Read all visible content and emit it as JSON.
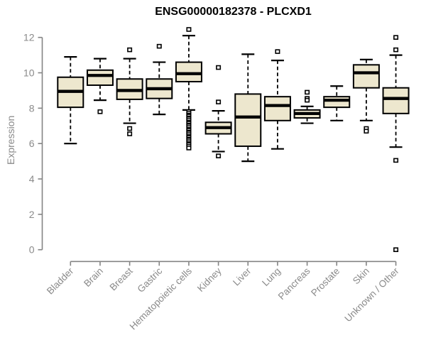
{
  "title": "ENSG00000182378 - PLCXD1",
  "colors": {
    "box_fill": "#EDE7CE",
    "box_stroke": "#000000",
    "median": "#000000",
    "whisker": "#000000",
    "outlier_fill": "#FFFFFF",
    "axis": "#848484",
    "tick_label": "#8a8a8a",
    "title_color": "#000000"
  },
  "chart_data": {
    "type": "boxplot",
    "title": "ENSG00000182378 - PLCXD1",
    "xlabel": "",
    "ylabel": "Expression",
    "ylim": [
      0,
      12
    ],
    "yticks": [
      0,
      2,
      4,
      6,
      8,
      10,
      12
    ],
    "grid": false,
    "legend": "none",
    "categories": [
      "Bladder",
      "Brain",
      "Breast",
      "Gastric",
      "Hematopoietic cells",
      "Kidney",
      "Liver",
      "Lung",
      "Pancreas",
      "Prostate",
      "Skin",
      "Unknown / Other"
    ],
    "series": [
      {
        "category": "Bladder",
        "whisker_low": 6.0,
        "q1": 8.05,
        "median": 8.95,
        "q3": 9.75,
        "whisker_high": 10.9,
        "outliers": []
      },
      {
        "category": "Brain",
        "whisker_low": 8.45,
        "q1": 9.3,
        "median": 9.85,
        "q3": 10.15,
        "whisker_high": 10.8,
        "outliers": [
          7.8
        ]
      },
      {
        "category": "Breast",
        "whisker_low": 7.15,
        "q1": 8.5,
        "median": 9.0,
        "q3": 9.65,
        "whisker_high": 10.8,
        "outliers": [
          11.3,
          6.85,
          6.55
        ]
      },
      {
        "category": "Gastric",
        "whisker_low": 7.65,
        "q1": 8.55,
        "median": 9.1,
        "q3": 9.65,
        "whisker_high": 10.6,
        "outliers": [
          11.5
        ]
      },
      {
        "category": "Hematopoietic cells",
        "whisker_low": 7.9,
        "q1": 9.5,
        "median": 9.95,
        "q3": 10.6,
        "whisker_high": 12.1,
        "outliers": [
          12.45,
          7.8,
          7.7,
          7.6,
          7.55,
          7.45,
          7.4,
          7.3,
          7.2,
          7.15,
          7.05,
          7.0,
          6.9,
          6.8,
          6.75,
          6.65,
          6.6,
          6.5,
          6.4,
          6.35,
          6.25,
          6.2,
          6.1,
          6.0,
          5.95,
          5.85,
          5.75
        ]
      },
      {
        "category": "Kidney",
        "whisker_low": 5.55,
        "q1": 6.55,
        "median": 6.9,
        "q3": 7.2,
        "whisker_high": 7.85,
        "outliers": [
          10.3,
          8.35,
          5.3
        ]
      },
      {
        "category": "Liver",
        "whisker_low": 5.0,
        "q1": 5.85,
        "median": 7.5,
        "q3": 8.8,
        "whisker_high": 11.05,
        "outliers": []
      },
      {
        "category": "Lung",
        "whisker_low": 5.7,
        "q1": 7.3,
        "median": 8.15,
        "q3": 8.65,
        "whisker_high": 10.7,
        "outliers": [
          11.2
        ]
      },
      {
        "category": "Pancreas",
        "whisker_low": 7.15,
        "q1": 7.45,
        "median": 7.7,
        "q3": 7.9,
        "whisker_high": 8.1,
        "outliers": [
          8.9,
          8.55,
          8.45
        ]
      },
      {
        "category": "Prostate",
        "whisker_low": 7.3,
        "q1": 8.05,
        "median": 8.45,
        "q3": 8.65,
        "whisker_high": 9.25,
        "outliers": []
      },
      {
        "category": "Skin",
        "whisker_low": 7.3,
        "q1": 9.15,
        "median": 10.0,
        "q3": 10.45,
        "whisker_high": 10.75,
        "outliers": [
          6.85,
          6.7
        ]
      },
      {
        "category": "Unknown / Other",
        "whisker_low": 5.8,
        "q1": 7.7,
        "median": 8.55,
        "q3": 9.15,
        "whisker_high": 11.0,
        "outliers": [
          12.0,
          11.3,
          5.05,
          0
        ]
      }
    ]
  }
}
